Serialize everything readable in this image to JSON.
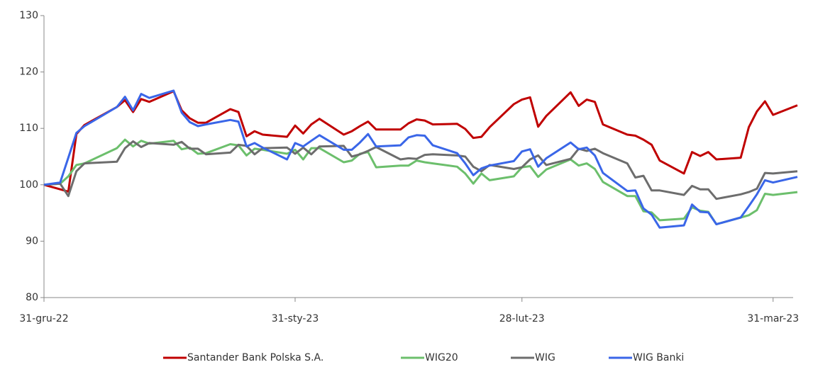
{
  "chart_data": {
    "type": "line",
    "x": [
      "2022-12-31",
      "2023-01-02",
      "2023-01-03",
      "2023-01-04",
      "2023-01-05",
      "2023-01-09",
      "2023-01-10",
      "2023-01-11",
      "2023-01-12",
      "2023-01-13",
      "2023-01-16",
      "2023-01-17",
      "2023-01-18",
      "2023-01-19",
      "2023-01-20",
      "2023-01-23",
      "2023-01-24",
      "2023-01-25",
      "2023-01-26",
      "2023-01-27",
      "2023-01-30",
      "2023-01-31",
      "2023-02-01",
      "2023-02-02",
      "2023-02-03",
      "2023-02-06",
      "2023-02-07",
      "2023-02-08",
      "2023-02-09",
      "2023-02-10",
      "2023-02-13",
      "2023-02-14",
      "2023-02-15",
      "2023-02-16",
      "2023-02-17",
      "2023-02-20",
      "2023-02-21",
      "2023-02-22",
      "2023-02-23",
      "2023-02-24",
      "2023-02-27",
      "2023-02-28",
      "2023-03-01",
      "2023-03-02",
      "2023-03-03",
      "2023-03-06",
      "2023-03-07",
      "2023-03-08",
      "2023-03-09",
      "2023-03-10",
      "2023-03-13",
      "2023-03-14",
      "2023-03-15",
      "2023-03-16",
      "2023-03-17",
      "2023-03-20",
      "2023-03-21",
      "2023-03-22",
      "2023-03-23",
      "2023-03-24",
      "2023-03-27",
      "2023-03-28",
      "2023-03-29",
      "2023-03-30",
      "2023-03-31",
      "2023-04-03"
    ],
    "series": [
      {
        "name": "Santander Bank Polska S.A.",
        "color": "#c00000",
        "values": [
          100,
          99.2,
          98.8,
          109,
          110.6,
          113.8,
          115,
          112.9,
          115.2,
          114.7,
          116.6,
          113.2,
          111.8,
          111,
          111,
          113.4,
          112.9,
          108.6,
          109.5,
          108.9,
          108.5,
          110.5,
          109.1,
          110.7,
          111.7,
          108.9,
          109.5,
          110.4,
          111.2,
          109.8,
          109.8,
          110.9,
          111.6,
          111.4,
          110.7,
          110.8,
          109.9,
          108.3,
          108.5,
          110.2,
          114.3,
          115.1,
          115.5,
          110.3,
          112.2,
          116.4,
          114,
          115.1,
          114.7,
          110.7,
          108.9,
          108.7,
          108,
          107.1,
          104.3,
          102,
          105.8,
          105.1,
          105.8,
          104.5,
          104.8,
          110.2,
          113,
          114.8,
          112.4,
          114.1
        ]
      },
      {
        "name": "WIG20",
        "color": "#6cbf6c",
        "values": [
          100,
          100.2,
          101.5,
          103.5,
          103.8,
          106.5,
          108,
          106.8,
          107.8,
          107.3,
          107.8,
          106.3,
          106.6,
          105.5,
          105.6,
          107.2,
          107,
          105.2,
          106.4,
          106.2,
          105.5,
          106.2,
          104.5,
          106.5,
          106.5,
          104,
          104.3,
          105.5,
          105.8,
          103.1,
          103.4,
          103.4,
          104.3,
          104,
          103.8,
          103.2,
          102,
          100.2,
          102,
          100.8,
          101.5,
          103.1,
          103.3,
          101.4,
          102.7,
          104.5,
          103.4,
          103.8,
          102.8,
          100.5,
          98,
          98,
          95.3,
          95.1,
          93.7,
          94,
          96,
          95.4,
          95.2,
          93,
          94.2,
          94.6,
          95.5,
          98.4,
          98.2,
          98.7
        ]
      },
      {
        "name": "WIG",
        "color": "#6d6d6d",
        "values": [
          100,
          100.2,
          98,
          102.4,
          103.8,
          104.1,
          106.5,
          107.7,
          106.7,
          107.4,
          107.1,
          107.6,
          106.4,
          106.4,
          105.4,
          105.7,
          107.1,
          106.9,
          105.4,
          106.5,
          106.6,
          105.5,
          106.6,
          105.4,
          106.8,
          106.9,
          105,
          105.4,
          106,
          106.7,
          104.5,
          104.7,
          104.6,
          105.3,
          105.4,
          105.2,
          105,
          103.2,
          102.4,
          103.5,
          102.8,
          103.1,
          104.5,
          105.2,
          103.5,
          104.6,
          106.4,
          106,
          106.4,
          105.6,
          103.8,
          101.3,
          101.6,
          99,
          99,
          98.2,
          99.8,
          99.2,
          99.2,
          97.5,
          98.3,
          98.7,
          99.3,
          102.1,
          102,
          102.4
        ]
      },
      {
        "name": "WIG Banki",
        "color": "#3a66e8",
        "values": [
          100,
          100.4,
          104.8,
          109.2,
          110.4,
          113.8,
          115.6,
          113.2,
          116.1,
          115.4,
          116.7,
          112.8,
          111.1,
          110.4,
          110.7,
          111.5,
          111.2,
          106.8,
          107.4,
          106.6,
          104.5,
          107.4,
          106.8,
          107.8,
          108.8,
          106.2,
          106.2,
          107.5,
          109,
          106.8,
          107,
          108.4,
          108.8,
          108.7,
          107,
          105.6,
          103.8,
          101.7,
          102.9,
          103.4,
          104.2,
          105.9,
          106.3,
          103.2,
          104.7,
          107.5,
          106.3,
          106.6,
          105.2,
          102.1,
          98.9,
          99,
          95.8,
          94.7,
          92.4,
          92.8,
          96.5,
          95.2,
          95.1,
          93,
          94.2,
          96.2,
          98.3,
          100.8,
          100.4,
          101.4
        ]
      }
    ],
    "xlim": [
      "2022-12-31",
      "2023-04-03"
    ],
    "xticks": [
      {
        "value": "2022-12-31",
        "label": "31-gru-22"
      },
      {
        "value": "2023-01-31",
        "label": "31-sty-23"
      },
      {
        "value": "2023-02-28",
        "label": "28-lut-23"
      },
      {
        "value": "2023-03-31",
        "label": "31-mar-23"
      }
    ],
    "ylim": [
      80,
      130
    ],
    "yticks": [
      80,
      90,
      100,
      110,
      120,
      130
    ],
    "grid": false,
    "legend": "bottom"
  }
}
